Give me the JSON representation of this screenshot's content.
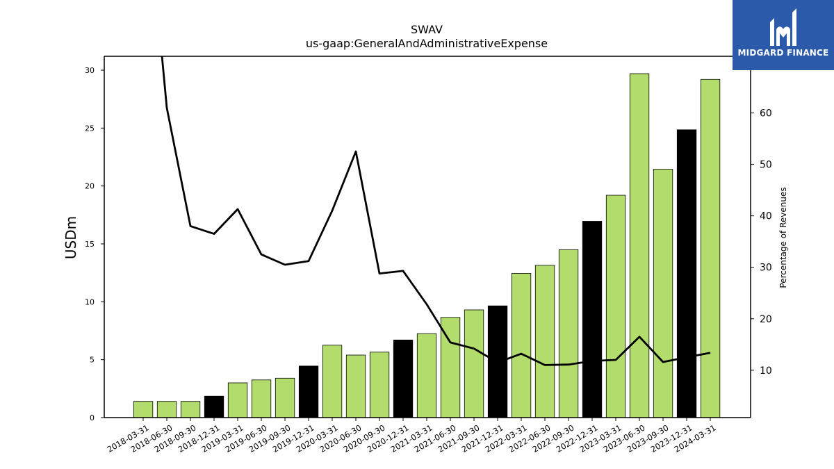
{
  "chart_data": {
    "type": "bar",
    "title": "SWAV",
    "subtitle": "us-gaap:GeneralAndAdministrativeExpense",
    "ylabel": "USDm",
    "y2label": "Percentage of Revenues",
    "ylim": [
      0,
      31.2
    ],
    "y2lim": [
      0.8,
      71.0
    ],
    "yticks": [
      0,
      5,
      10,
      15,
      20,
      25,
      30
    ],
    "y2ticks": [
      10,
      20,
      30,
      40,
      50,
      60
    ],
    "categories": [
      "2018-03-31",
      "2018-06-30",
      "2018-09-30",
      "2018-12-31",
      "2019-03-31",
      "2019-06-30",
      "2019-09-30",
      "2019-12-31",
      "2020-03-31",
      "2020-06-30",
      "2020-09-30",
      "2020-12-31",
      "2021-03-31",
      "2021-06-30",
      "2021-09-30",
      "2021-12-31",
      "2022-03-31",
      "2022-06-30",
      "2022-09-30",
      "2022-12-31",
      "2023-03-31",
      "2023-06-30",
      "2023-09-30",
      "2023-12-31",
      "2024-03-31"
    ],
    "series": [
      {
        "type": "bar",
        "values": [
          1.4,
          1.4,
          1.4,
          1.85,
          3.0,
          3.25,
          3.4,
          4.45,
          6.25,
          5.4,
          5.65,
          6.7,
          7.25,
          8.65,
          9.3,
          9.65,
          12.45,
          13.15,
          14.5,
          16.95,
          19.2,
          29.7,
          21.45,
          24.85,
          29.2
        ],
        "colors": [
          "#b2dc6b",
          "#b2dc6b",
          "#b2dc6b",
          "#000000",
          "#b2dc6b",
          "#b2dc6b",
          "#b2dc6b",
          "#000000",
          "#b2dc6b",
          "#b2dc6b",
          "#b2dc6b",
          "#000000",
          "#b2dc6b",
          "#b2dc6b",
          "#b2dc6b",
          "#000000",
          "#b2dc6b",
          "#b2dc6b",
          "#b2dc6b",
          "#000000",
          "#b2dc6b",
          "#b2dc6b",
          "#b2dc6b",
          "#000000",
          "#b2dc6b"
        ]
      },
      {
        "type": "line",
        "axis": "right",
        "values": [
          110,
          61,
          38,
          36.5,
          41.3,
          32.5,
          30.5,
          31.2,
          41,
          52.5,
          28.8,
          29.3,
          22.8,
          15.4,
          14.2,
          11.5,
          13.2,
          11,
          11.1,
          11.8,
          12,
          16.5,
          11.6,
          12.5,
          13.4
        ],
        "color": "#000000"
      }
    ]
  },
  "branding": {
    "logo_text": "MIDGARD FINANCE",
    "logo_color": "#2b5aab"
  }
}
